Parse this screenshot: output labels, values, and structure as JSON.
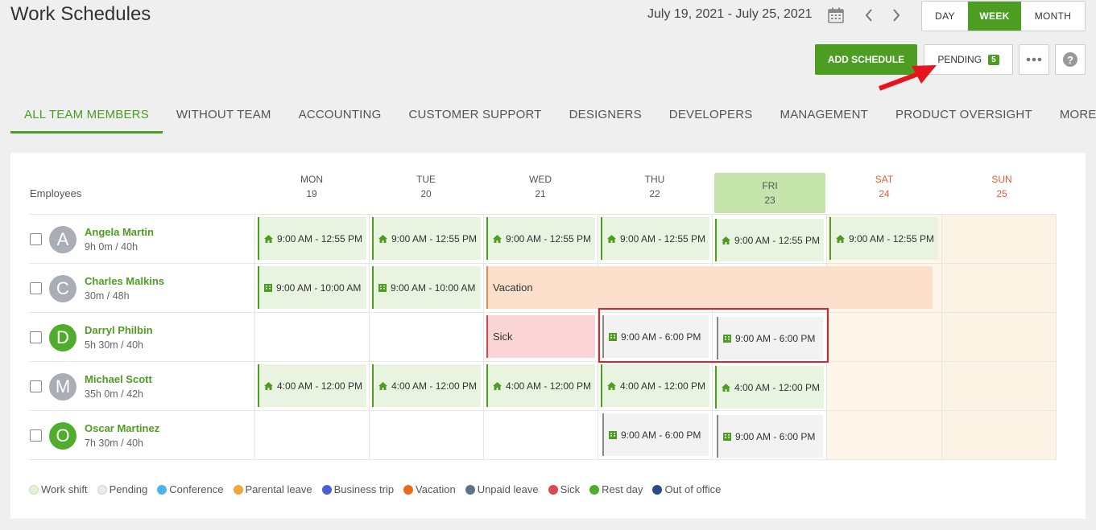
{
  "page": {
    "title": "Work Schedules"
  },
  "header": {
    "date_range": "July 19, 2021 - July 25, 2021",
    "views": {
      "day": "DAY",
      "week": "WEEK",
      "month": "MONTH"
    },
    "add_schedule": "ADD SCHEDULE",
    "pending_label": "PENDING",
    "pending_count": "5",
    "help_glyph": "?"
  },
  "tabs": {
    "all": "ALL TEAM MEMBERS",
    "without_team": "WITHOUT TEAM",
    "accounting": "ACCOUNTING",
    "customer_support": "CUSTOMER SUPPORT",
    "designers": "DESIGNERS",
    "developers": "DEVELOPERS",
    "management": "MANAGEMENT",
    "product_oversight": "PRODUCT OVERSIGHT",
    "more": "MORE"
  },
  "grid": {
    "employees_header": "Employees",
    "days": [
      {
        "name": "MON",
        "num": "19"
      },
      {
        "name": "TUE",
        "num": "20"
      },
      {
        "name": "WED",
        "num": "21"
      },
      {
        "name": "THU",
        "num": "22"
      },
      {
        "name": "FRI",
        "num": "23"
      },
      {
        "name": "SAT",
        "num": "24"
      },
      {
        "name": "SUN",
        "num": "25"
      }
    ]
  },
  "employees": [
    {
      "initial": "A",
      "name": "Angela Martin",
      "hours": "9h 0m / 40h"
    },
    {
      "initial": "C",
      "name": "Charles Malkins",
      "hours": "30m / 48h"
    },
    {
      "initial": "D",
      "name": "Darryl Philbin",
      "hours": "5h 30m / 40h"
    },
    {
      "initial": "M",
      "name": "Michael Scott",
      "hours": "35h 0m / 42h"
    },
    {
      "initial": "O",
      "name": "Oscar Martinez",
      "hours": "7h 30m / 40h"
    }
  ],
  "shifts": {
    "angela": [
      "9:00 AM - 12:55 PM",
      "9:00 AM - 12:55 PM",
      "9:00 AM - 12:55 PM",
      "9:00 AM - 12:55 PM",
      "9:00 AM - 12:55 PM",
      "9:00 AM - 12:55 PM"
    ],
    "charles": [
      "9:00 AM - 10:00 AM",
      "9:00 AM - 10:00 AM"
    ],
    "charles_vacation": "Vacation",
    "darryl_sick": "Sick",
    "darryl": [
      "9:00 AM - 6:00 PM",
      "9:00 AM - 6:00 PM"
    ],
    "michael": [
      "4:00 AM - 12:00 PM",
      "4:00 AM - 12:00 PM",
      "4:00 AM - 12:00 PM",
      "4:00 AM - 12:00 PM",
      "4:00 AM - 12:00 PM"
    ],
    "oscar": [
      "9:00 AM - 6:00 PM",
      "9:00 AM - 6:00 PM"
    ]
  },
  "legend": [
    {
      "label": "Work shift",
      "color": "#d4ecc4"
    },
    {
      "label": "Pending",
      "color": "#e8e8e8"
    },
    {
      "label": "Conference",
      "color": "#4ab3f0"
    },
    {
      "label": "Parental leave",
      "color": "#f0a63a"
    },
    {
      "label": "Business trip",
      "color": "#4b5fd1"
    },
    {
      "label": "Vacation",
      "color": "#ec6a1e"
    },
    {
      "label": "Unpaid leave",
      "color": "#5f7282"
    },
    {
      "label": "Sick",
      "color": "#e04850"
    },
    {
      "label": "Rest day",
      "color": "#4fad2b"
    },
    {
      "label": "Out of office",
      "color": "#2c4a8a"
    }
  ]
}
